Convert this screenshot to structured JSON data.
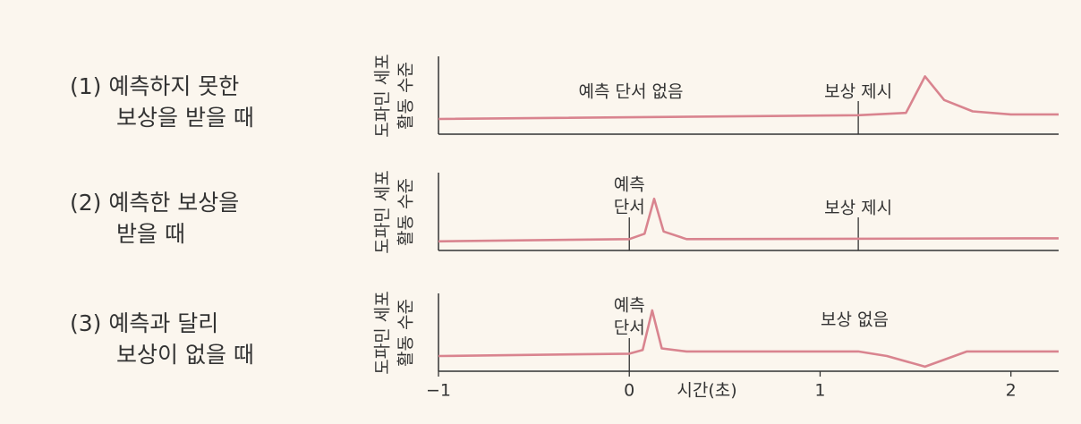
{
  "chart_data": [
    {
      "type": "line",
      "title": [
        "(1) 예측하지 못한",
        "보상을 받을 때"
      ],
      "ylabel": [
        "도파민 세포",
        "활동 수준"
      ],
      "x": [
        -1,
        1.2,
        1.45,
        1.55,
        1.65,
        1.8,
        2.0,
        2.25
      ],
      "values": [
        2.0,
        2.5,
        2.8,
        7.6,
        4.5,
        3.0,
        2.6,
        2.6
      ],
      "color": "#d9848f",
      "xlim": [
        -1,
        2.25
      ],
      "ylim": [
        0,
        10
      ],
      "events": [
        {
          "x": 1.2,
          "label": "보상 제시"
        }
      ],
      "annotations": [
        "예측 단서 없음"
      ]
    },
    {
      "type": "line",
      "title": [
        "(2) 예측한 보상을",
        "받을 때"
      ],
      "ylabel": [
        "도파민 세포",
        "활동 수준"
      ],
      "x": [
        -1,
        0,
        0.08,
        0.13,
        0.18,
        0.3,
        2.25
      ],
      "values": [
        1.2,
        1.5,
        2.2,
        6.8,
        2.5,
        1.5,
        1.6
      ],
      "color": "#d9848f",
      "xlim": [
        -1,
        2.25
      ],
      "ylim": [
        0,
        10
      ],
      "events": [
        {
          "x": 0,
          "label": [
            "예측",
            "단서"
          ]
        },
        {
          "x": 1.2,
          "label": "보상 제시"
        }
      ],
      "annotations": []
    },
    {
      "type": "line",
      "title": [
        "(3) 예측과 달리",
        "보상이 없을 때"
      ],
      "ylabel": [
        "도파민 세포",
        "활동 수준"
      ],
      "x": [
        -1,
        0,
        0.07,
        0.12,
        0.17,
        0.3,
        1.2,
        1.35,
        1.55,
        1.77,
        2.25
      ],
      "values": [
        2.0,
        2.3,
        2.8,
        8.0,
        3.0,
        2.6,
        2.6,
        2.0,
        0.6,
        2.6,
        2.6
      ],
      "color": "#d9848f",
      "xlim": [
        -1,
        2.25
      ],
      "ylim": [
        0,
        10
      ],
      "events": [
        {
          "x": 0,
          "label": [
            "예측",
            "단서"
          ]
        }
      ],
      "annotations": [
        "보상 없음"
      ],
      "xticks": [
        {
          "value": -1,
          "label": "−1"
        },
        0,
        1,
        2
      ],
      "xlabel": "시간(초)"
    }
  ]
}
